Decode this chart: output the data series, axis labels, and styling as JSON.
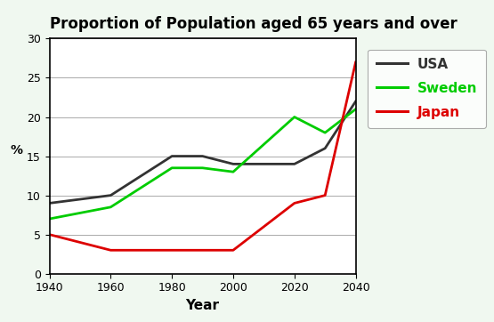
{
  "title": "Proportion of Population aged 65 years and over",
  "xlabel": "Year",
  "ylabel": "%",
  "years": [
    1940,
    1960,
    1980,
    1990,
    2000,
    2020,
    2030,
    2040
  ],
  "usa": [
    9,
    10,
    15,
    15,
    14,
    14,
    16,
    22
  ],
  "sweden": [
    7,
    8.5,
    13.5,
    13.5,
    13,
    20,
    18,
    21
  ],
  "japan": [
    5,
    3,
    3,
    3,
    3,
    9,
    10,
    27
  ],
  "usa_color": "#333333",
  "sweden_color": "#00cc00",
  "japan_color": "#dd0000",
  "ylim": [
    0,
    30
  ],
  "xlim": [
    1940,
    2040
  ],
  "xticks": [
    1940,
    1960,
    1980,
    2000,
    2020,
    2040
  ],
  "yticks": [
    0,
    5,
    10,
    15,
    20,
    25,
    30
  ],
  "bg_color": "#f0f8f0",
  "plot_bg": "#ffffff",
  "legend_labels": [
    "USA",
    "Sweden",
    "Japan"
  ],
  "title_fontsize": 12,
  "tick_fontsize": 9,
  "xlabel_fontsize": 11,
  "ylabel_fontsize": 10,
  "linewidth": 2.0
}
